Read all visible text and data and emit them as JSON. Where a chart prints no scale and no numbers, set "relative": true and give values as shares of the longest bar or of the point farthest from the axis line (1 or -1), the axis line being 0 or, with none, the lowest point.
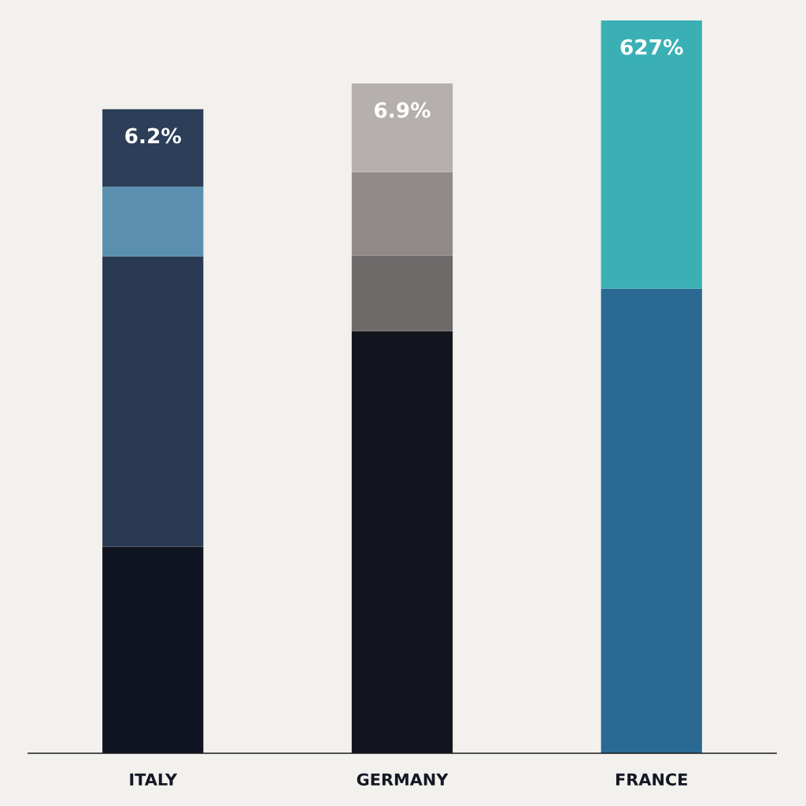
{
  "chart_data": {
    "type": "bar",
    "stacked": true,
    "relative": true,
    "categories": [
      "ITALY",
      "GERMANY",
      "FRANCE"
    ],
    "series": [
      {
        "colors": [
          "#0f1420",
          "#13151e",
          "#2a6a92"
        ],
        "values": [
          0.282,
          0.576,
          0.634
        ]
      },
      {
        "colors": [
          "#2a3a52",
          "#6e6a6a",
          "#3ab0b5"
        ],
        "values": [
          0.396,
          0.103,
          0.366
        ]
      },
      {
        "colors": [
          "#5a8fb0",
          "#908a88",
          null
        ],
        "values": [
          0.095,
          0.114,
          null
        ]
      },
      {
        "colors": [
          "#2c3e58",
          "#b5b0ad",
          null
        ],
        "values": [
          0.106,
          0.121,
          null
        ]
      }
    ],
    "annotations": [
      "6.2%",
      "6.9%",
      "627%"
    ],
    "grid": false,
    "legend": false
  }
}
